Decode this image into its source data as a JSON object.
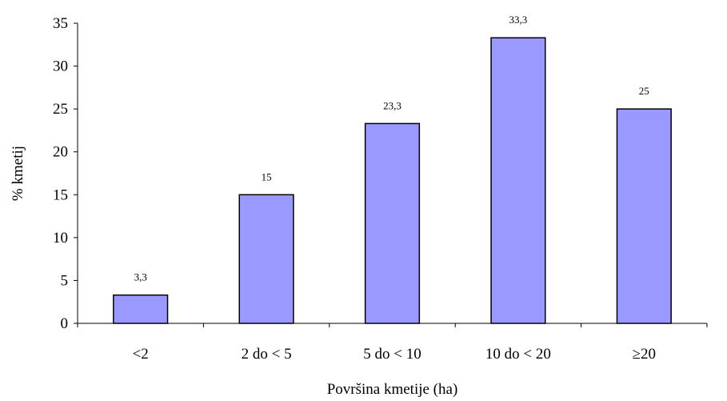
{
  "chart_data": {
    "type": "bar",
    "categories": [
      "<2",
      "2 do < 5",
      "5 do < 10",
      "10 do < 20",
      "≥20"
    ],
    "values": [
      3.3,
      15,
      23.3,
      33.3,
      25
    ],
    "data_labels": [
      "3,3",
      "15",
      "23,3",
      "33,3",
      "25"
    ],
    "title": "",
    "xlabel": "Površina kmetije (ha)",
    "ylabel": "% kmetij",
    "ylim": [
      0,
      35
    ],
    "yticks": [
      0,
      5,
      10,
      15,
      20,
      25,
      30,
      35
    ],
    "grid": false,
    "legend": "none",
    "bar_color": "#9999ff"
  }
}
